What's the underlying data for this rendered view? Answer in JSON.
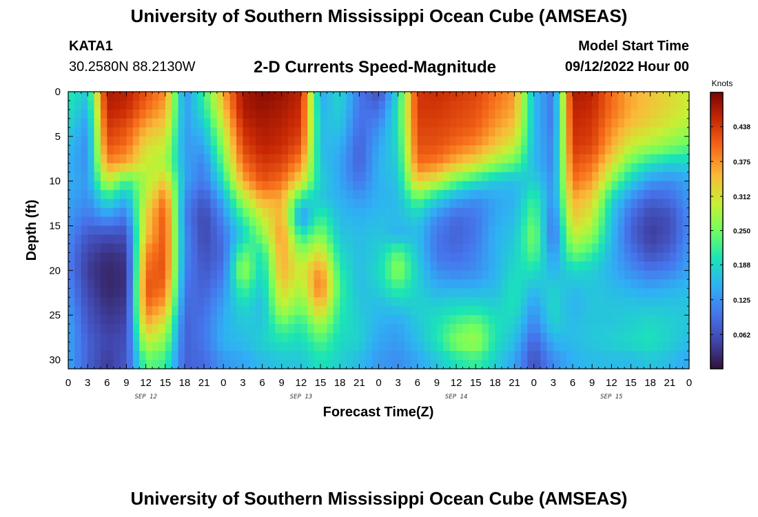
{
  "header": {
    "title": "University of Southern Mississippi Ocean Cube (AMSEAS)",
    "station": "KATA1",
    "coords": "30.2580N  88.2130W",
    "subtitle": "2-D Currents Speed-Magnitude",
    "model_start_label": "Model Start Time",
    "model_start_value": "09/12/2022 Hour 00"
  },
  "footer": {
    "title": "University of Southern Mississippi Ocean Cube (AMSEAS)"
  },
  "chart_data": {
    "type": "heatmap",
    "title": "2-D Currents Speed-Magnitude",
    "xlabel": "Forecast Time(Z)",
    "ylabel": "Depth (ft)",
    "xlim": [
      0,
      96
    ],
    "ylim": [
      0,
      31
    ],
    "x_tick_labels": [
      "0",
      "3",
      "6",
      "9",
      "12",
      "15",
      "18",
      "21",
      "0",
      "3",
      "6",
      "9",
      "12",
      "15",
      "18",
      "21",
      "0",
      "3",
      "6",
      "9",
      "12",
      "15",
      "18",
      "21",
      "0",
      "3",
      "6",
      "9",
      "12",
      "15",
      "18",
      "21",
      "0"
    ],
    "y_ticks": [
      0,
      5,
      10,
      15,
      20,
      25,
      30
    ],
    "day_labels": [
      {
        "label": "SEP 12",
        "x": 12
      },
      {
        "label": "SEP 13",
        "x": 36
      },
      {
        "label": "SEP 14",
        "x": 60
      },
      {
        "label": "SEP 15",
        "x": 84
      }
    ],
    "colorbar": {
      "label": "Knots",
      "min": 0,
      "max": 0.5,
      "ticks": [
        "0.438",
        "0.375",
        "0.312",
        "0.250",
        "0.188",
        "0.125",
        "0.062"
      ],
      "tick_values": [
        0.438,
        0.375,
        0.312,
        0.25,
        0.188,
        0.125,
        0.062
      ]
    },
    "depth_rows": [
      0,
      2,
      4,
      6,
      8,
      10,
      12,
      14,
      16,
      18,
      20,
      22,
      24,
      26,
      28,
      30
    ],
    "time_cols": [
      0,
      3,
      6,
      9,
      12,
      15,
      18,
      21,
      24,
      27,
      30,
      33,
      36,
      39,
      42,
      45,
      48,
      51,
      54,
      57,
      60,
      63,
      66,
      69,
      72,
      75,
      78,
      81,
      84,
      87,
      90,
      93,
      96
    ],
    "speed": [
      [
        0.21,
        0.17,
        0.47,
        0.46,
        0.42,
        0.38,
        0.12,
        0.22,
        0.36,
        0.47,
        0.49,
        0.48,
        0.46,
        0.14,
        0.19,
        0.1,
        0.06,
        0.19,
        0.44,
        0.45,
        0.44,
        0.43,
        0.4,
        0.37,
        0.16,
        0.1,
        0.47,
        0.46,
        0.4,
        0.36,
        0.34,
        0.32,
        0.3
      ],
      [
        0.2,
        0.15,
        0.46,
        0.45,
        0.4,
        0.36,
        0.13,
        0.2,
        0.34,
        0.47,
        0.48,
        0.47,
        0.45,
        0.15,
        0.18,
        0.1,
        0.09,
        0.2,
        0.44,
        0.44,
        0.43,
        0.42,
        0.39,
        0.36,
        0.16,
        0.1,
        0.46,
        0.45,
        0.4,
        0.36,
        0.34,
        0.32,
        0.3
      ],
      [
        0.18,
        0.13,
        0.44,
        0.42,
        0.36,
        0.33,
        0.13,
        0.17,
        0.3,
        0.45,
        0.47,
        0.46,
        0.44,
        0.16,
        0.17,
        0.09,
        0.12,
        0.2,
        0.43,
        0.43,
        0.42,
        0.41,
        0.37,
        0.34,
        0.16,
        0.1,
        0.45,
        0.44,
        0.38,
        0.34,
        0.32,
        0.3,
        0.28
      ],
      [
        0.16,
        0.12,
        0.42,
        0.4,
        0.32,
        0.3,
        0.13,
        0.14,
        0.27,
        0.43,
        0.46,
        0.45,
        0.42,
        0.16,
        0.15,
        0.08,
        0.14,
        0.19,
        0.42,
        0.42,
        0.4,
        0.38,
        0.34,
        0.3,
        0.16,
        0.11,
        0.44,
        0.43,
        0.36,
        0.3,
        0.28,
        0.26,
        0.24
      ],
      [
        0.15,
        0.12,
        0.38,
        0.36,
        0.3,
        0.28,
        0.14,
        0.11,
        0.24,
        0.4,
        0.44,
        0.43,
        0.38,
        0.17,
        0.14,
        0.08,
        0.15,
        0.18,
        0.4,
        0.39,
        0.35,
        0.32,
        0.27,
        0.24,
        0.16,
        0.11,
        0.42,
        0.4,
        0.32,
        0.24,
        0.2,
        0.18,
        0.18
      ],
      [
        0.15,
        0.13,
        0.3,
        0.22,
        0.28,
        0.34,
        0.14,
        0.1,
        0.2,
        0.36,
        0.42,
        0.4,
        0.32,
        0.18,
        0.14,
        0.1,
        0.15,
        0.17,
        0.34,
        0.3,
        0.24,
        0.2,
        0.17,
        0.16,
        0.18,
        0.12,
        0.4,
        0.37,
        0.26,
        0.18,
        0.13,
        0.12,
        0.14
      ],
      [
        0.14,
        0.12,
        0.2,
        0.15,
        0.3,
        0.4,
        0.12,
        0.07,
        0.15,
        0.28,
        0.36,
        0.36,
        0.2,
        0.17,
        0.15,
        0.13,
        0.15,
        0.16,
        0.24,
        0.18,
        0.14,
        0.12,
        0.14,
        0.15,
        0.22,
        0.12,
        0.36,
        0.33,
        0.19,
        0.12,
        0.08,
        0.09,
        0.13
      ],
      [
        0.13,
        0.1,
        0.13,
        0.1,
        0.33,
        0.42,
        0.11,
        0.05,
        0.12,
        0.22,
        0.3,
        0.36,
        0.12,
        0.22,
        0.16,
        0.15,
        0.16,
        0.16,
        0.18,
        0.12,
        0.09,
        0.1,
        0.14,
        0.16,
        0.24,
        0.1,
        0.34,
        0.3,
        0.17,
        0.09,
        0.05,
        0.06,
        0.12
      ],
      [
        0.12,
        0.07,
        0.06,
        0.06,
        0.34,
        0.42,
        0.12,
        0.05,
        0.1,
        0.18,
        0.26,
        0.38,
        0.2,
        0.26,
        0.17,
        0.16,
        0.17,
        0.15,
        0.16,
        0.1,
        0.08,
        0.1,
        0.15,
        0.17,
        0.26,
        0.09,
        0.3,
        0.27,
        0.16,
        0.08,
        0.04,
        0.06,
        0.12
      ],
      [
        0.11,
        0.05,
        0.03,
        0.04,
        0.38,
        0.42,
        0.12,
        0.06,
        0.09,
        0.24,
        0.2,
        0.37,
        0.26,
        0.32,
        0.19,
        0.16,
        0.18,
        0.24,
        0.17,
        0.1,
        0.09,
        0.11,
        0.15,
        0.18,
        0.24,
        0.12,
        0.25,
        0.22,
        0.15,
        0.1,
        0.06,
        0.08,
        0.13
      ],
      [
        0.11,
        0.04,
        0.02,
        0.03,
        0.4,
        0.42,
        0.11,
        0.07,
        0.1,
        0.28,
        0.18,
        0.36,
        0.3,
        0.38,
        0.21,
        0.16,
        0.19,
        0.27,
        0.18,
        0.12,
        0.11,
        0.12,
        0.15,
        0.19,
        0.2,
        0.15,
        0.19,
        0.18,
        0.15,
        0.12,
        0.1,
        0.11,
        0.14
      ],
      [
        0.12,
        0.05,
        0.02,
        0.03,
        0.42,
        0.4,
        0.1,
        0.08,
        0.12,
        0.23,
        0.17,
        0.33,
        0.28,
        0.4,
        0.22,
        0.16,
        0.18,
        0.22,
        0.18,
        0.15,
        0.15,
        0.15,
        0.16,
        0.2,
        0.16,
        0.18,
        0.16,
        0.17,
        0.16,
        0.15,
        0.14,
        0.15,
        0.16
      ],
      [
        0.13,
        0.06,
        0.03,
        0.04,
        0.4,
        0.36,
        0.09,
        0.09,
        0.14,
        0.19,
        0.16,
        0.3,
        0.25,
        0.35,
        0.21,
        0.17,
        0.16,
        0.17,
        0.18,
        0.18,
        0.19,
        0.19,
        0.18,
        0.2,
        0.13,
        0.19,
        0.15,
        0.17,
        0.17,
        0.17,
        0.17,
        0.17,
        0.17
      ],
      [
        0.14,
        0.07,
        0.04,
        0.05,
        0.36,
        0.3,
        0.08,
        0.1,
        0.15,
        0.17,
        0.17,
        0.24,
        0.21,
        0.28,
        0.2,
        0.18,
        0.15,
        0.14,
        0.17,
        0.2,
        0.23,
        0.25,
        0.2,
        0.18,
        0.11,
        0.18,
        0.16,
        0.17,
        0.17,
        0.18,
        0.19,
        0.18,
        0.17
      ],
      [
        0.14,
        0.08,
        0.05,
        0.06,
        0.3,
        0.26,
        0.08,
        0.1,
        0.15,
        0.16,
        0.18,
        0.2,
        0.19,
        0.23,
        0.19,
        0.18,
        0.14,
        0.13,
        0.16,
        0.2,
        0.26,
        0.28,
        0.2,
        0.16,
        0.08,
        0.15,
        0.16,
        0.17,
        0.18,
        0.19,
        0.2,
        0.18,
        0.16
      ],
      [
        0.14,
        0.08,
        0.04,
        0.07,
        0.24,
        0.22,
        0.08,
        0.09,
        0.13,
        0.14,
        0.16,
        0.17,
        0.17,
        0.2,
        0.18,
        0.16,
        0.13,
        0.12,
        0.14,
        0.17,
        0.2,
        0.22,
        0.18,
        0.14,
        0.06,
        0.12,
        0.15,
        0.16,
        0.16,
        0.16,
        0.17,
        0.16,
        0.14
      ]
    ]
  }
}
